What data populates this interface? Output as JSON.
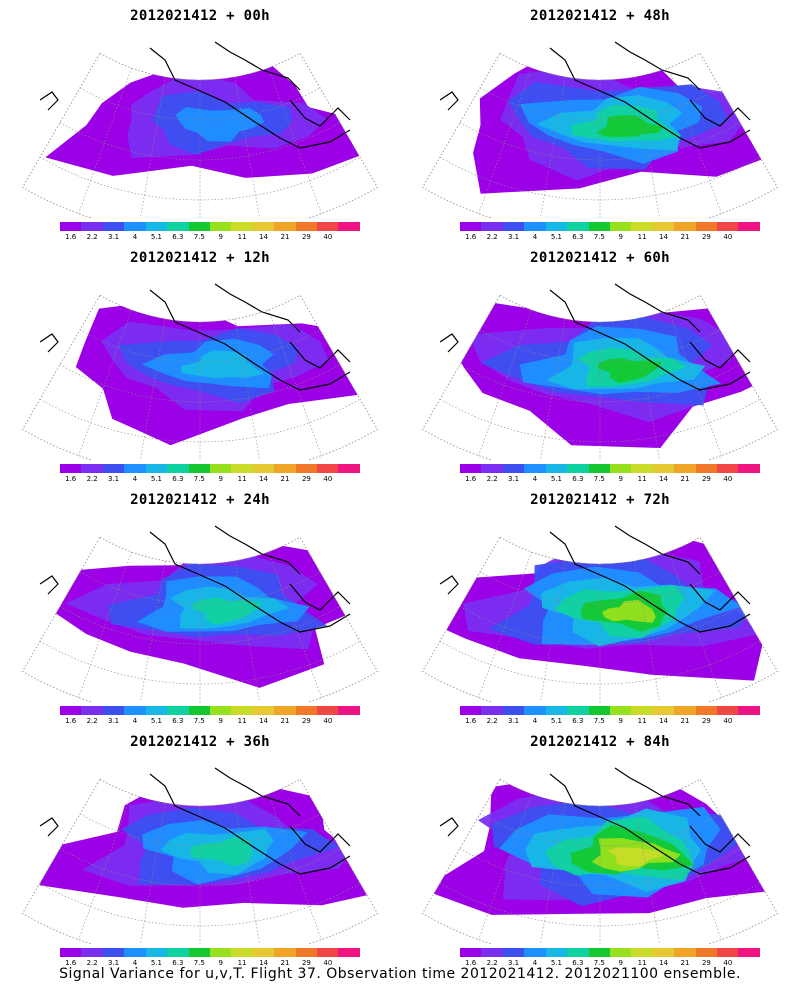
{
  "panels": [
    {
      "title": "2012021412 + 00h",
      "level": 0.15
    },
    {
      "title": "2012021412 + 48h",
      "level": 0.55
    },
    {
      "title": "2012021412 + 12h",
      "level": 0.3
    },
    {
      "title": "2012021412 + 60h",
      "level": 0.6
    },
    {
      "title": "2012021412 + 24h",
      "level": 0.4
    },
    {
      "title": "2012021412 + 72h",
      "level": 0.7
    },
    {
      "title": "2012021412 + 36h",
      "level": 0.45
    },
    {
      "title": "2012021412 + 84h",
      "level": 0.8
    }
  ],
  "colorbar": {
    "labels": [
      "1.6",
      "2.2",
      "3.1",
      "4",
      "5.1",
      "6.3",
      "7.5",
      "9",
      "11",
      "14",
      "21",
      "29",
      "40"
    ],
    "colors": [
      "#9b00e6",
      "#7a2ef0",
      "#3c50f0",
      "#1e90ff",
      "#17b8e6",
      "#10d2a0",
      "#15c832",
      "#96e01e",
      "#c8dc28",
      "#e6c832",
      "#f0a528",
      "#f07828",
      "#f04646",
      "#f01482"
    ]
  },
  "caption": "Signal Variance for u,v,T. Flight 37. Observation time 2012021412. 2012021100 ensemble.",
  "colors": {
    "land_outline": "#000000",
    "grid": "#888888",
    "background": "#ffffff"
  }
}
